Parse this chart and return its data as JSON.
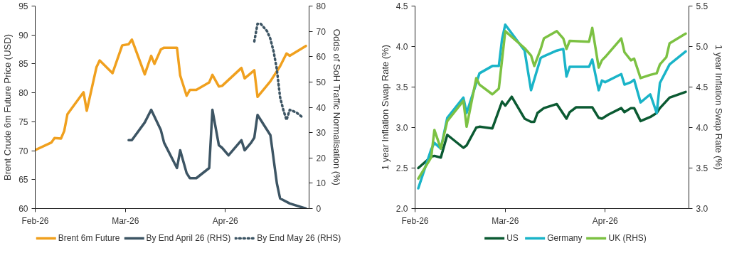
{
  "chart_data": [
    {
      "type": "line",
      "xlabel": null,
      "ylabel": "Brent Crude 6m Future Price (USD)",
      "y2label": "Odds of SoH Traffic Normalisation (%)",
      "legend": "bottom",
      "xlim": [
        "2026-02-01",
        "2026-04-27"
      ],
      "xticks": [
        {
          "value": "2026-02-01",
          "label": "Feb-26"
        },
        {
          "value": "2026-03-01",
          "label": "Mar-26"
        },
        {
          "value": "2026-04-01",
          "label": "Apr-26"
        }
      ],
      "ylim": [
        60,
        95
      ],
      "yticks": [
        60,
        65,
        70,
        75,
        80,
        85,
        90,
        95
      ],
      "y2lim": [
        0,
        80
      ],
      "y2ticks": [
        0,
        10,
        20,
        30,
        40,
        50,
        60,
        70,
        80
      ],
      "series": [
        {
          "name": "Brent 6m Future",
          "color": "#f0a01e",
          "x": [
            "2026-02-01",
            "2026-02-06",
            "2026-02-07",
            "2026-02-09",
            "2026-02-10",
            "2026-02-11",
            "2026-02-16",
            "2026-02-17",
            "2026-02-20",
            "2026-02-21",
            "2026-02-25",
            "2026-02-28",
            "2026-03-02",
            "2026-03-03",
            "2026-03-07",
            "2026-03-09",
            "2026-03-10",
            "2026-03-12",
            "2026-03-13",
            "2026-03-17",
            "2026-03-18",
            "2026-03-20",
            "2026-03-21",
            "2026-03-23",
            "2026-03-27",
            "2026-03-28",
            "2026-03-30",
            "2026-03-31",
            "2026-04-06",
            "2026-04-07",
            "2026-04-10",
            "2026-04-11",
            "2026-04-15",
            "2026-04-18",
            "2026-04-20",
            "2026-04-21",
            "2026-04-26"
          ],
          "values": [
            70.1,
            71.4,
            72.2,
            72.1,
            73.4,
            76.3,
            80.1,
            76.9,
            84.4,
            85.6,
            83.4,
            88.2,
            88.4,
            89.2,
            83.2,
            86.4,
            85.0,
            87.5,
            87.8,
            87.8,
            83.0,
            79.5,
            80.5,
            80.5,
            81.8,
            83.1,
            81.1,
            81.2,
            84.3,
            82.5,
            83.9,
            79.3,
            82.0,
            84.6,
            86.8,
            86.4,
            88.1
          ]
        },
        {
          "name": "By End April 26 (RHS)",
          "color": "#3d5564",
          "axis": "y2",
          "x": [
            "2026-03-02",
            "2026-03-03",
            "2026-03-07",
            "2026-03-09",
            "2026-03-12",
            "2026-03-13",
            "2026-03-17",
            "2026-03-18",
            "2026-03-20",
            "2026-03-21",
            "2026-03-23",
            "2026-03-27",
            "2026-03-28",
            "2026-03-30",
            "2026-03-31",
            "2026-04-02",
            "2026-04-06",
            "2026-04-07",
            "2026-04-09",
            "2026-04-10",
            "2026-04-11",
            "2026-04-15",
            "2026-04-17",
            "2026-04-18",
            "2026-04-21",
            "2026-04-26"
          ],
          "values": [
            27,
            27,
            34,
            39,
            31,
            26,
            16,
            23,
            14,
            12,
            12,
            16,
            39,
            25,
            24,
            21,
            27,
            23,
            26,
            28,
            37,
            29,
            10,
            4,
            2,
            0
          ]
        },
        {
          "name": "By End May 26 (RHS)",
          "color": "#3d5564",
          "axis": "y2",
          "line_style": "dotted",
          "x": [
            "2026-04-10",
            "2026-04-11",
            "2026-04-12",
            "2026-04-14",
            "2026-04-15",
            "2026-04-16",
            "2026-04-17",
            "2026-04-18",
            "2026-04-19",
            "2026-04-20",
            "2026-04-21",
            "2026-04-23",
            "2026-04-25"
          ],
          "values": [
            66,
            73,
            73,
            70,
            67,
            62,
            55,
            44,
            39,
            35,
            39,
            38,
            36
          ]
        }
      ]
    },
    {
      "type": "line",
      "ylabel": "1 year Inflation Swap Rate (%)",
      "y2label": "1 year Inflation Swap Rate (%)",
      "legend": "bottom",
      "xlim": [
        "2026-02-01",
        "2026-04-27"
      ],
      "xticks": [
        {
          "value": "2026-02-01",
          "label": "Feb-26"
        },
        {
          "value": "2026-03-01",
          "label": "Mar-26"
        },
        {
          "value": "2026-04-01",
          "label": "Apr-26"
        }
      ],
      "ylim": [
        2.0,
        4.5
      ],
      "yticks": [
        {
          "value": 2,
          "label": "2.0"
        },
        2.5,
        {
          "value": 3,
          "label": "3.0"
        },
        3.5,
        {
          "value": 4,
          "label": "4.0"
        },
        4.5
      ],
      "y2lim": [
        3.0,
        5.5
      ],
      "y2ticks": [
        {
          "value": 3,
          "label": "3.0"
        },
        3.5,
        {
          "value": 4,
          "label": "4.0"
        },
        4.5,
        {
          "value": 5,
          "label": "5.0"
        },
        5.5
      ],
      "series": [
        {
          "name": "US",
          "color": "#0b5a32",
          "x": [
            "2026-02-02",
            "2026-02-06",
            "2026-02-07",
            "2026-02-09",
            "2026-02-11",
            "2026-02-16",
            "2026-02-17",
            "2026-02-20",
            "2026-02-21",
            "2026-02-25",
            "2026-02-28",
            "2026-03-01",
            "2026-03-03",
            "2026-03-07",
            "2026-03-09",
            "2026-03-10",
            "2026-03-11",
            "2026-03-13",
            "2026-03-17",
            "2026-03-20",
            "2026-03-21",
            "2026-03-23",
            "2026-03-28",
            "2026-03-30",
            "2026-03-31",
            "2026-04-02",
            "2026-04-06",
            "2026-04-07",
            "2026-04-09",
            "2026-04-10",
            "2026-04-12",
            "2026-04-15",
            "2026-04-17",
            "2026-04-18",
            "2026-04-21",
            "2026-04-26"
          ],
          "values": [
            2.5,
            2.64,
            2.65,
            2.63,
            2.91,
            2.75,
            2.78,
            3.0,
            3.01,
            2.99,
            3.32,
            3.27,
            3.38,
            3.11,
            3.07,
            3.07,
            3.18,
            3.24,
            3.29,
            3.11,
            3.19,
            3.25,
            3.25,
            3.12,
            3.11,
            3.16,
            3.24,
            3.19,
            3.24,
            3.24,
            3.08,
            3.13,
            3.18,
            3.24,
            3.37,
            3.44
          ]
        },
        {
          "name": "Germany",
          "color": "#1ab4c8",
          "x": [
            "2026-02-02",
            "2026-02-06",
            "2026-02-07",
            "2026-02-09",
            "2026-02-11",
            "2026-02-16",
            "2026-02-17",
            "2026-02-21",
            "2026-02-25",
            "2026-02-27",
            "2026-02-28",
            "2026-03-01",
            "2026-03-07",
            "2026-03-09",
            "2026-03-12",
            "2026-03-13",
            "2026-03-17",
            "2026-03-19",
            "2026-03-20",
            "2026-03-21",
            "2026-03-27",
            "2026-03-28",
            "2026-03-30",
            "2026-03-31",
            "2026-04-01",
            "2026-04-06",
            "2026-04-07",
            "2026-04-09",
            "2026-04-10",
            "2026-04-12",
            "2026-04-15",
            "2026-04-17",
            "2026-04-18",
            "2026-04-21",
            "2026-04-26"
          ],
          "values": [
            2.25,
            2.73,
            2.81,
            2.74,
            3.12,
            3.37,
            3.18,
            3.67,
            3.76,
            3.76,
            4.09,
            4.27,
            3.95,
            3.46,
            3.86,
            3.88,
            3.95,
            3.97,
            3.63,
            3.75,
            3.75,
            3.84,
            3.46,
            3.58,
            3.56,
            3.66,
            3.53,
            3.56,
            3.59,
            3.31,
            3.41,
            3.18,
            3.55,
            3.78,
            3.94
          ]
        },
        {
          "name": "UK (RHS)",
          "color": "#7cc142",
          "axis": "y2",
          "x": [
            "2026-02-02",
            "2026-02-06",
            "2026-02-07",
            "2026-02-09",
            "2026-02-11",
            "2026-02-16",
            "2026-02-17",
            "2026-02-20",
            "2026-02-21",
            "2026-02-25",
            "2026-02-27",
            "2026-03-01",
            "2026-03-07",
            "2026-03-09",
            "2026-03-10",
            "2026-03-12",
            "2026-03-13",
            "2026-03-17",
            "2026-03-19",
            "2026-03-20",
            "2026-03-21",
            "2026-03-27",
            "2026-03-28",
            "2026-03-30",
            "2026-03-31",
            "2026-04-01",
            "2026-04-06",
            "2026-04-07",
            "2026-04-09",
            "2026-04-10",
            "2026-04-12",
            "2026-04-15",
            "2026-04-17",
            "2026-04-18",
            "2026-04-20",
            "2026-04-21",
            "2026-04-26"
          ],
          "values": [
            3.37,
            3.63,
            3.97,
            3.74,
            4.08,
            4.33,
            4.01,
            4.61,
            4.53,
            4.41,
            4.48,
            5.19,
            4.98,
            4.89,
            4.76,
            4.97,
            5.1,
            5.19,
            5.1,
            4.97,
            5.07,
            5.06,
            5.23,
            4.74,
            4.83,
            4.87,
            5.1,
            4.93,
            4.83,
            4.85,
            4.61,
            4.65,
            4.67,
            4.78,
            4.87,
            5.04,
            5.16
          ]
        }
      ]
    }
  ]
}
